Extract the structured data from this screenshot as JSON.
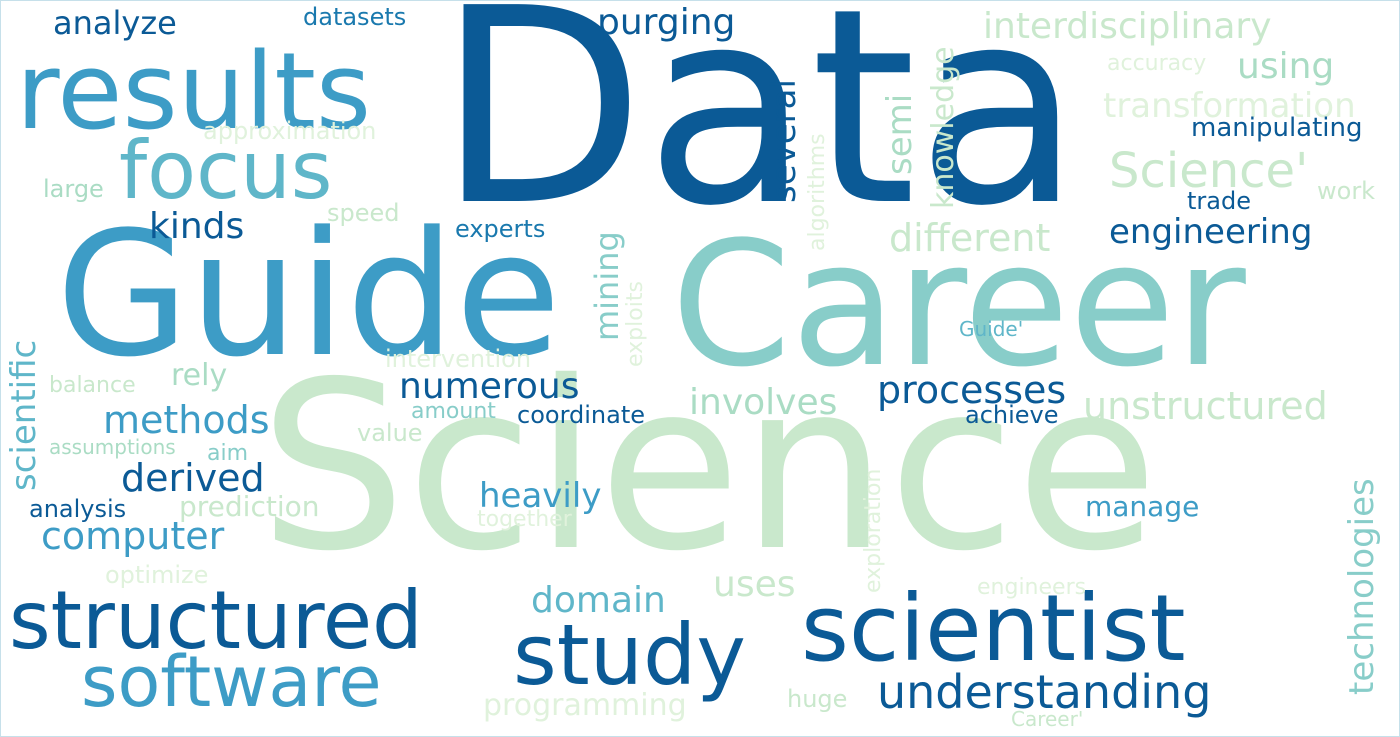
{
  "palette": {
    "darkest": "#0b5a96",
    "dark": "#1a79ae",
    "mid": "#3d9cc6",
    "teal": "#5fb6c9",
    "aqua": "#88cdc9",
    "mint": "#aadcc4",
    "pale": "#c9e8cc",
    "faint": "#e0f2dc"
  },
  "words": [
    {
      "text": "Data",
      "color": "darkest"
    },
    {
      "text": "Science",
      "color": "pale"
    },
    {
      "text": "Career",
      "color": "aqua"
    },
    {
      "text": "Guide",
      "color": "mid"
    },
    {
      "text": "results",
      "color": "mid"
    },
    {
      "text": "focus",
      "color": "teal"
    },
    {
      "text": "scientist",
      "color": "darkest"
    },
    {
      "text": "structured",
      "color": "darkest"
    },
    {
      "text": "study",
      "color": "darkest"
    },
    {
      "text": "software",
      "color": "mid"
    },
    {
      "text": "understanding",
      "color": "darkest"
    },
    {
      "text": "interdisciplinary",
      "color": "pale"
    },
    {
      "text": "transformation",
      "color": "faint"
    },
    {
      "text": "Science'",
      "color": "pale"
    },
    {
      "text": "different",
      "color": "pale"
    },
    {
      "text": "engineering",
      "color": "darkest"
    },
    {
      "text": "unstructured",
      "color": "pale"
    },
    {
      "text": "processes",
      "color": "darkest"
    },
    {
      "text": "involves",
      "color": "mint"
    },
    {
      "text": "numerous",
      "color": "darkest"
    },
    {
      "text": "methods",
      "color": "mid"
    },
    {
      "text": "derived",
      "color": "darkest"
    },
    {
      "text": "computer",
      "color": "mid"
    },
    {
      "text": "heavily",
      "color": "mid"
    },
    {
      "text": "domain",
      "color": "teal"
    },
    {
      "text": "uses",
      "color": "pale"
    },
    {
      "text": "programming",
      "color": "faint"
    },
    {
      "text": "kinds",
      "color": "darkest"
    },
    {
      "text": "purging",
      "color": "darkest"
    },
    {
      "text": "analyze",
      "color": "darkest"
    },
    {
      "text": "datasets",
      "color": "dark"
    },
    {
      "text": "using",
      "color": "mint"
    },
    {
      "text": "accuracy",
      "color": "faint"
    },
    {
      "text": "manipulating",
      "color": "darkest"
    },
    {
      "text": "work",
      "color": "pale"
    },
    {
      "text": "trade",
      "color": "darkest"
    },
    {
      "text": "approximation",
      "color": "faint"
    },
    {
      "text": "large",
      "color": "mint"
    },
    {
      "text": "speed",
      "color": "pale"
    },
    {
      "text": "experts",
      "color": "dark"
    },
    {
      "text": "Guide'",
      "color": "teal"
    },
    {
      "text": "intervention",
      "color": "faint"
    },
    {
      "text": "rely",
      "color": "mint"
    },
    {
      "text": "balance",
      "color": "pale"
    },
    {
      "text": "amount",
      "color": "aqua"
    },
    {
      "text": "coordinate",
      "color": "darkest"
    },
    {
      "text": "value",
      "color": "pale"
    },
    {
      "text": "achieve",
      "color": "darkest"
    },
    {
      "text": "assumptions",
      "color": "mint"
    },
    {
      "text": "aim",
      "color": "aqua"
    },
    {
      "text": "analysis",
      "color": "darkest"
    },
    {
      "text": "prediction",
      "color": "pale"
    },
    {
      "text": "together",
      "color": "faint"
    },
    {
      "text": "manage",
      "color": "mid"
    },
    {
      "text": "optimize",
      "color": "faint"
    },
    {
      "text": "engineers",
      "color": "faint"
    },
    {
      "text": "huge",
      "color": "pale"
    },
    {
      "text": "Career'",
      "color": "pale"
    },
    {
      "text": "scientific",
      "color": "teal"
    },
    {
      "text": "several",
      "color": "darkest"
    },
    {
      "text": "semi",
      "color": "mint"
    },
    {
      "text": "knowledge",
      "color": "pale"
    },
    {
      "text": "algorithms",
      "color": "faint"
    },
    {
      "text": "mining",
      "color": "aqua"
    },
    {
      "text": "exploits",
      "color": "faint"
    },
    {
      "text": "exploration",
      "color": "faint"
    },
    {
      "text": "technologies",
      "color": "aqua"
    }
  ]
}
